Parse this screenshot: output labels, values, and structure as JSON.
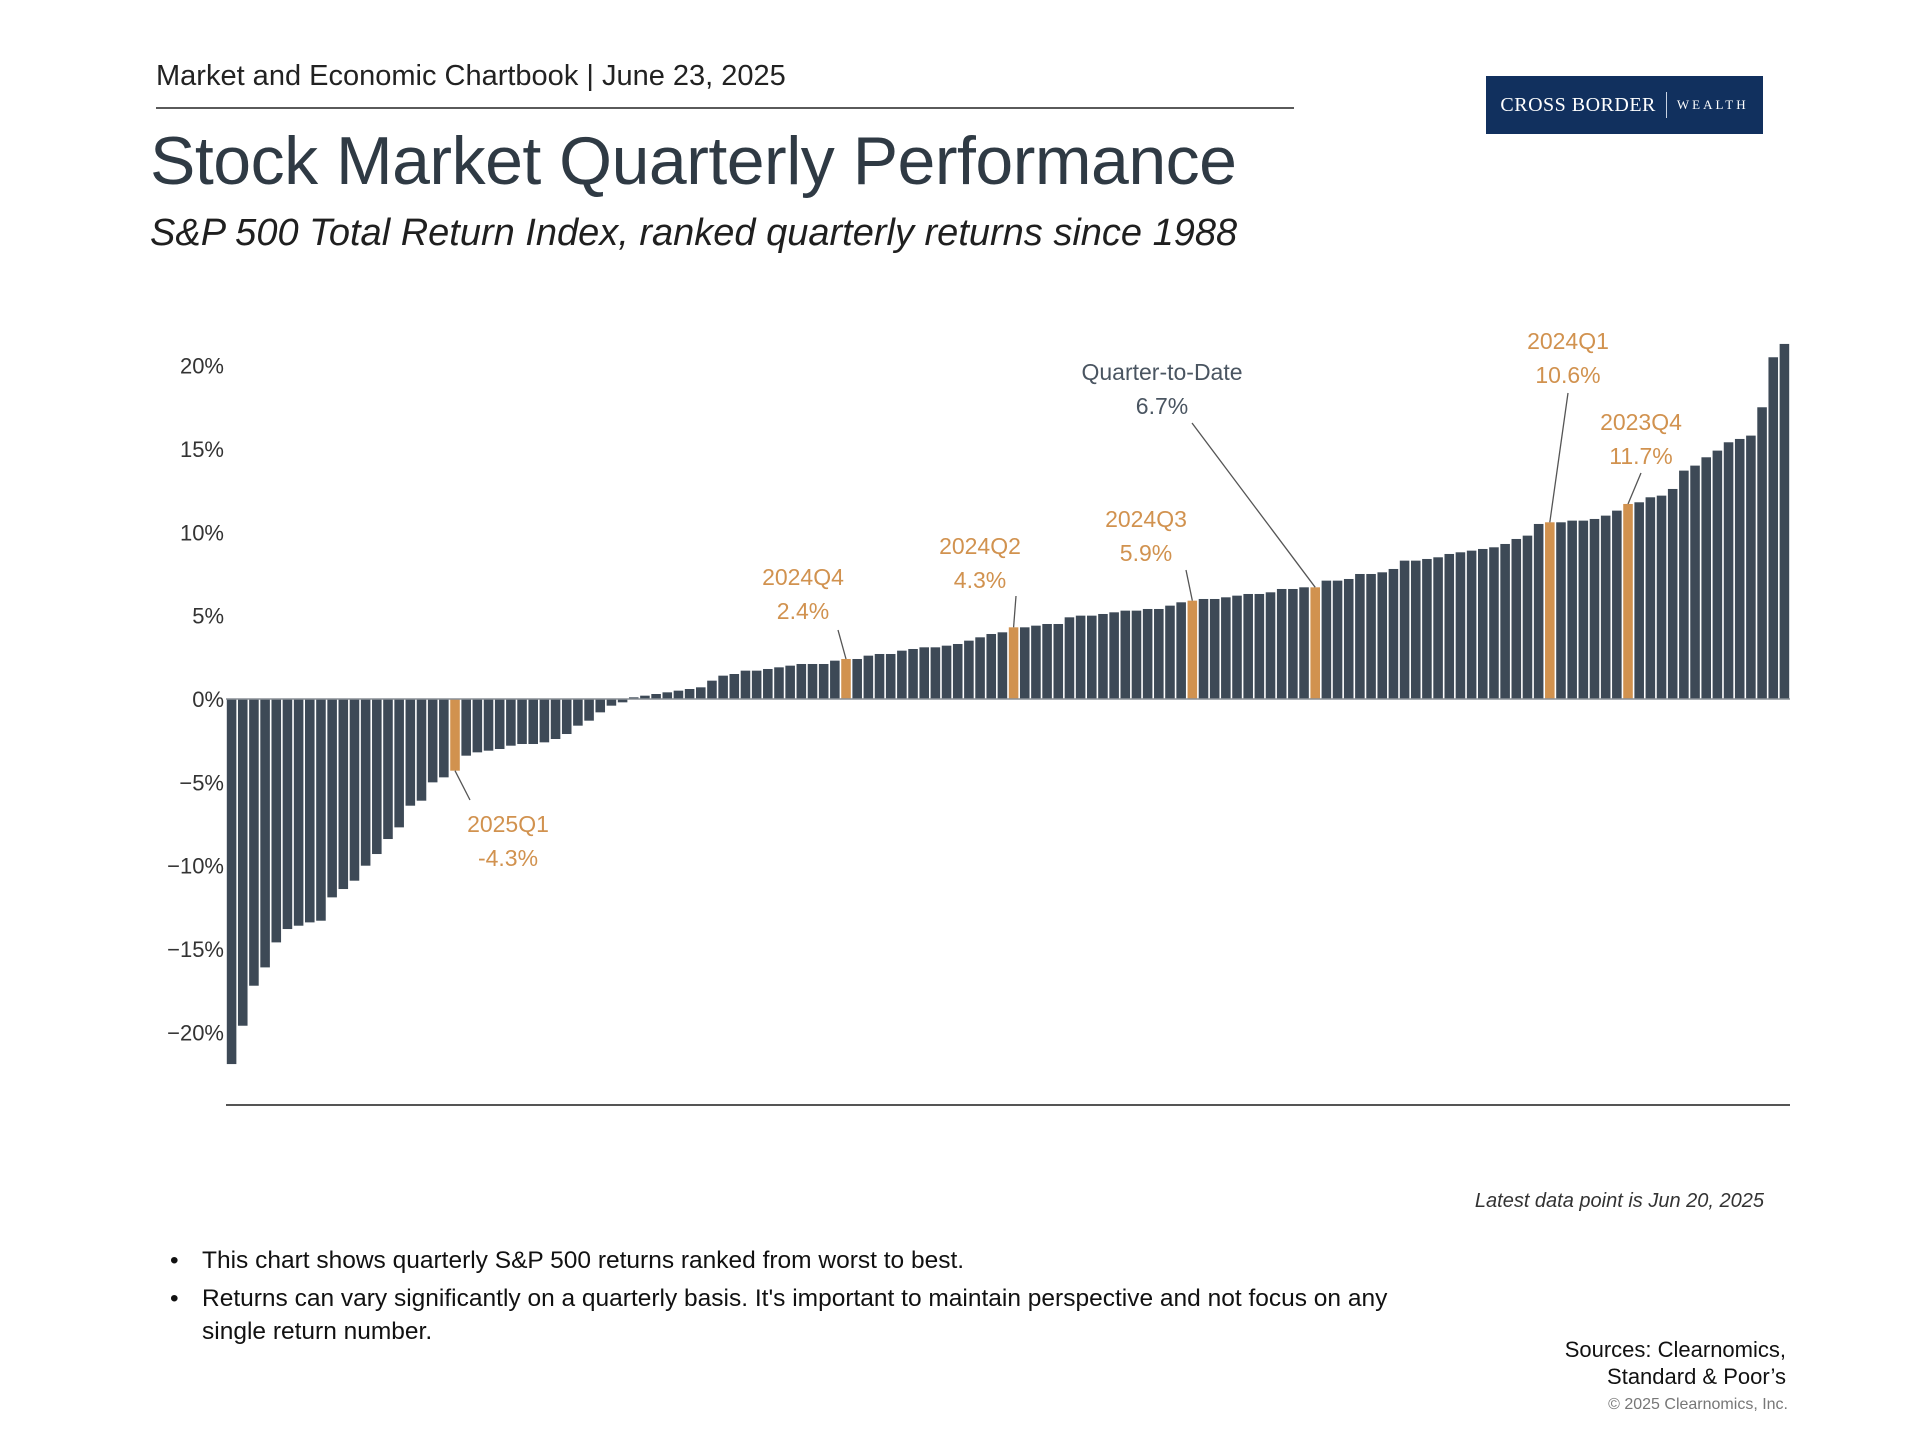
{
  "header": {
    "chartbook": "Market and Economic Chartbook | June 23, 2025",
    "title": "Stock Market Quarterly Performance",
    "subtitle": "S&P 500 Total Return Index, ranked quarterly returns since 1988"
  },
  "logo": {
    "main": "CROSS BORDER",
    "sub": "WEALTH",
    "bg_color": "#11305e"
  },
  "colors": {
    "bar": "#3d4956",
    "highlight": "#d1924f",
    "annotation_dark": "#4a5561",
    "annotation_orange": "#d1924f"
  },
  "chart_data": {
    "type": "bar",
    "title": "",
    "xlabel": "",
    "ylabel": "",
    "ylim": [
      -24,
      21.5
    ],
    "yticks": [
      20,
      15,
      10,
      5,
      0,
      -5,
      -10,
      -15,
      -20
    ],
    "ytick_labels": [
      "20%",
      "15%",
      "10%",
      "5%",
      "0%",
      "−5%",
      "−10%",
      "−15%",
      "−20%"
    ],
    "grid": false,
    "values": [
      -21.9,
      -19.6,
      -17.2,
      -16.1,
      -14.6,
      -13.8,
      -13.6,
      -13.4,
      -13.3,
      -11.9,
      -11.4,
      -10.9,
      -10,
      -9.3,
      -8.4,
      -7.7,
      -6.4,
      -6.1,
      -5,
      -4.7,
      -4.3,
      -3.4,
      -3.2,
      -3.1,
      -3,
      -2.8,
      -2.7,
      -2.7,
      -2.6,
      -2.4,
      -2.1,
      -1.6,
      -1.3,
      -0.8,
      -0.4,
      -0.2,
      0.1,
      0.2,
      0.3,
      0.4,
      0.5,
      0.6,
      0.7,
      1.1,
      1.4,
      1.5,
      1.7,
      1.7,
      1.8,
      1.9,
      2,
      2.1,
      2.1,
      2.1,
      2.3,
      2.4,
      2.4,
      2.6,
      2.7,
      2.7,
      2.9,
      3,
      3.1,
      3.1,
      3.2,
      3.3,
      3.5,
      3.7,
      3.9,
      4,
      4.3,
      4.3,
      4.4,
      4.5,
      4.5,
      4.9,
      5,
      5,
      5.1,
      5.2,
      5.3,
      5.3,
      5.4,
      5.4,
      5.6,
      5.8,
      5.9,
      6,
      6,
      6.1,
      6.2,
      6.3,
      6.3,
      6.4,
      6.6,
      6.6,
      6.7,
      6.7,
      7.1,
      7.1,
      7.2,
      7.5,
      7.5,
      7.6,
      7.8,
      8.3,
      8.3,
      8.4,
      8.5,
      8.7,
      8.8,
      8.9,
      9,
      9.1,
      9.3,
      9.6,
      9.8,
      10.5,
      10.6,
      10.6,
      10.7,
      10.7,
      10.8,
      11,
      11.3,
      11.7,
      11.8,
      12.1,
      12.2,
      12.6,
      13.7,
      14,
      14.5,
      14.9,
      15.4,
      15.6,
      15.8,
      17.5,
      20.5,
      21.3
    ],
    "highlight_indices": [
      20,
      55,
      70,
      86,
      97,
      118,
      125
    ],
    "annotations": [
      {
        "index": 20,
        "label": "2025Q1",
        "value_label": "-4.3%",
        "color": "orange"
      },
      {
        "index": 55,
        "label": "2024Q4",
        "value_label": "2.4%",
        "color": "orange"
      },
      {
        "index": 70,
        "label": "2024Q2",
        "value_label": "4.3%",
        "color": "orange"
      },
      {
        "index": 86,
        "label": "2024Q3",
        "value_label": "5.9%",
        "color": "orange"
      },
      {
        "index": 97,
        "label": "Quarter-to-Date",
        "value_label": "6.7%",
        "color": "dark"
      },
      {
        "index": 118,
        "label": "2024Q1",
        "value_label": "10.6%",
        "color": "orange"
      },
      {
        "index": 125,
        "label": "2023Q4",
        "value_label": "11.7%",
        "color": "orange"
      }
    ]
  },
  "latest_note": "Latest data point is Jun 20, 2025",
  "bullets": [
    "This chart shows quarterly S&P 500 returns ranked from worst to best.",
    "Returns can vary significantly on a quarterly basis. It's important to maintain perspective and not focus on any single return number."
  ],
  "bullet_symbol": "•",
  "sources": {
    "line1": "Sources: Clearnomics,",
    "line2": "Standard & Poor’s"
  },
  "copyright": "© 2025 Clearnomics, Inc."
}
